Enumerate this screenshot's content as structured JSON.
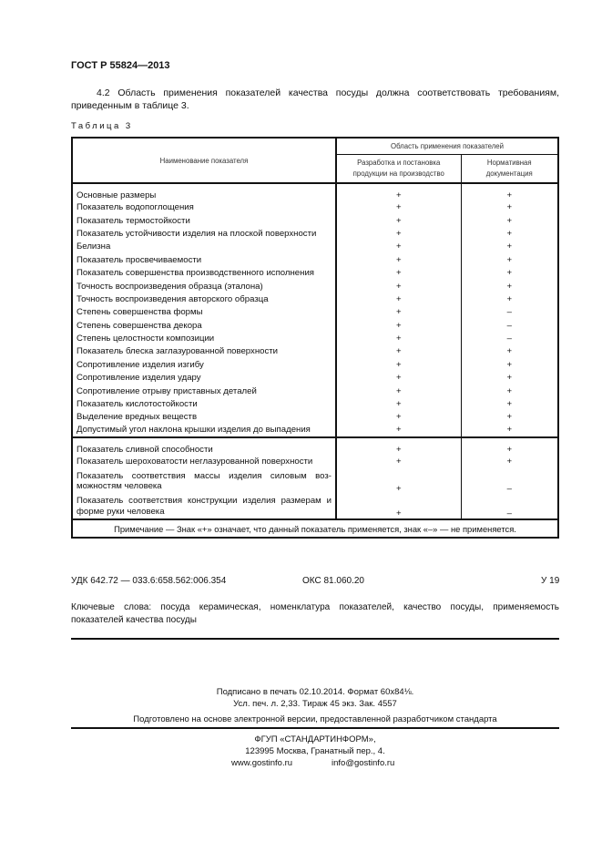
{
  "header": {
    "doc_id": "ГОСТ Р 55824—2013"
  },
  "paragraph": "4.2 Область применения показателей качества посуды должна соответствовать требованиям, приведенным в таблице 3.",
  "table": {
    "caption": "Таблица 3",
    "col_name": "Наименование показателя",
    "col_group": "Область применения показателей",
    "col_dev": "Разработка и постановка продукции на производство",
    "col_norm": "Нормативная документация",
    "section1": [
      [
        "Основные размеры",
        "+",
        "+"
      ],
      [
        "Показатель водопоглощения",
        "+",
        "+"
      ],
      [
        "Показатель термостойкости",
        "+",
        "+"
      ],
      [
        "Показатель устойчивости изделия на плоской поверхности",
        "+",
        "+"
      ],
      [
        "Белизна",
        "+",
        "+"
      ],
      [
        "Показатель просвечиваемости",
        "+",
        "+"
      ],
      [
        "Показатель совершенства производственного исполнения",
        "+",
        "+"
      ],
      [
        "Точность воспроизведения образца (эталона)",
        "+",
        "+"
      ],
      [
        "Точность воспроизведения авторского образца",
        "+",
        "+"
      ],
      [
        "Степень совершенства формы",
        "+",
        "–"
      ],
      [
        "Степень совершенства декора",
        "+",
        "–"
      ],
      [
        "Степень целостности композиции",
        "+",
        "–"
      ],
      [
        "Показатель блеска заглазурованной поверхности",
        "+",
        "+"
      ],
      [
        "Сопротивление изделия изгибу",
        "+",
        "+"
      ],
      [
        "Сопротивление изделия удару",
        "+",
        "+"
      ],
      [
        "Сопротивление отрыву приставных деталей",
        "+",
        "+"
      ],
      [
        "Показатель кислотостойкости",
        "+",
        "+"
      ],
      [
        "Выделение вредных веществ",
        "+",
        "+"
      ],
      [
        "Допустимый угол наклона крышки изделия до выпадения",
        "+",
        "+"
      ]
    ],
    "section2": [
      [
        "Показатель сливной способности",
        "+",
        "+"
      ],
      [
        "Показатель шероховатости неглазурованной поверхности",
        "+",
        "+"
      ],
      [
        "Показатель соответствия массы изделия силовым воз-можностям человека",
        "+",
        "–"
      ],
      [
        "Показатель соответствия конструкции изделия размерам и форме руки человека",
        "+",
        "–"
      ]
    ],
    "note": "Примечание — Знак «+» означает, что данный показатель применяется, знак «–» — не применяется."
  },
  "footer": {
    "udk": "УДК 642.72 — 033.6:658.562:006.354",
    "oks": "ОКС 81.060.20",
    "code": "У 19",
    "keywords": "Ключевые слова: посуда керамическая, номенклатура показателей, качество посуды, применяемость показателей качества посуды",
    "signed": "Подписано в печать 02.10.2014.   Формат 60x84⅛.",
    "print": "Усл. печ. л. 2,33. Тираж 45 экз. Зак. 4557",
    "prepared": "Подготовлено на основе электронной версии, предоставленной разработчиком стандарта",
    "publisher": "ФГУП «СТАНДАРТИНФОРМ»,",
    "address": "123995 Москва, Гранатный пер., 4.",
    "site": "www.gostinfo.ru",
    "email": "info@gostinfo.ru"
  }
}
